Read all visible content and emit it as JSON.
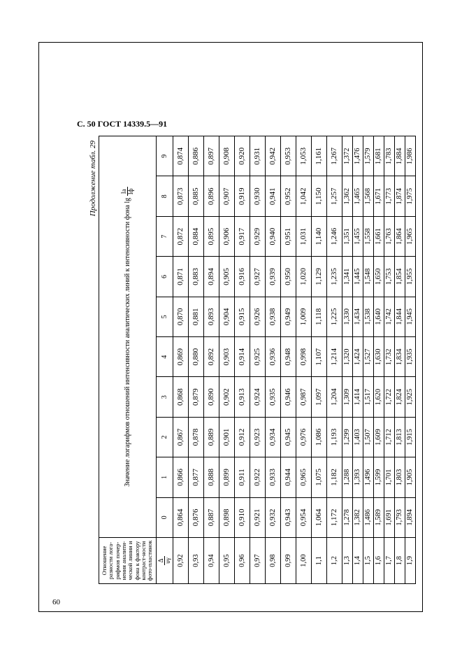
{
  "page": {
    "header": "С. 50 ГОСТ 14339.5—91",
    "footer_number": "60",
    "caption": "Продолжение табл. 29"
  },
  "table": {
    "row_header_top": "Отношение разности лога-рифмов почер-нения аналити-ческой линии и фона к фактору контраст-ности фото-пластинок",
    "row_header_frac_num": "Δ",
    "row_header_frac_den": "υγ",
    "group_header_prefix": "Значение логарифмов отношений интенсивности аналитических линий к интенсивности фона lg",
    "group_frac_num": "Iа",
    "group_frac_den": "Iф",
    "col_labels": [
      "0",
      "1",
      "2",
      "3",
      "4",
      "5",
      "6",
      "7",
      "8",
      "9"
    ],
    "rows": [
      {
        "h": "0,92",
        "c": [
          "0,864",
          "0,866",
          "0,867",
          "0,868",
          "0,869",
          "0,870",
          "0,871",
          "0,872",
          "0,873",
          "0,874"
        ],
        "tight": false
      },
      {
        "h": "0,93",
        "c": [
          "0,876",
          "0,877",
          "0,878",
          "0,879",
          "0,880",
          "0,881",
          "0,883",
          "0,884",
          "0,885",
          "0,886"
        ],
        "tight": false
      },
      {
        "h": "0,94",
        "c": [
          "0,887",
          "0,888",
          "0,889",
          "0,890",
          "0,892",
          "0,893",
          "0,894",
          "0,895",
          "0,896",
          "0,897"
        ],
        "tight": false
      },
      {
        "h": "0,95",
        "c": [
          "0,898",
          "0,899",
          "0,901",
          "0,902",
          "0,903",
          "0,904",
          "0,905",
          "0,906",
          "0,907",
          "0,908"
        ],
        "tight": false
      },
      {
        "h": "0,96",
        "c": [
          "0,910",
          "0,911",
          "0,912",
          "0,913",
          "0,914",
          "0,915",
          "0,916",
          "0,917",
          "0,919",
          "0,920"
        ],
        "tight": false
      },
      {
        "h": "0,97",
        "c": [
          "0,921",
          "0,922",
          "0,923",
          "0,924",
          "0,925",
          "0,926",
          "0,927",
          "0,929",
          "0,930",
          "0,931"
        ],
        "tight": false
      },
      {
        "h": "0,98",
        "c": [
          "0,932",
          "0,933",
          "0,934",
          "0,935",
          "0,936",
          "0,938",
          "0,939",
          "0,940",
          "0,941",
          "0,942"
        ],
        "tight": false
      },
      {
        "h": "0,99",
        "c": [
          "0,943",
          "0,944",
          "0,945",
          "0,946",
          "0,948",
          "0,949",
          "0,950",
          "0,951",
          "0,952",
          "0,953"
        ],
        "tight": false
      },
      {
        "h": "1,00",
        "c": [
          "0,954",
          "0,965",
          "0,976",
          "0,987",
          "0,998",
          "1,009",
          "1,020",
          "1,031",
          "1,042",
          "1,053"
        ],
        "tight": false
      },
      {
        "h": "1,1",
        "c": [
          "1,064",
          "1,075",
          "1,086",
          "1,097",
          "1,107",
          "1,118",
          "1,129",
          "1,140",
          "1,150",
          "1,161"
        ],
        "tight": false
      },
      {
        "h": "1,2",
        "c": [
          "1,172",
          "1,182",
          "1,193",
          "1,204",
          "1,214",
          "1,225",
          "1,235",
          "1,246",
          "1,257",
          "1,267"
        ],
        "tight": false
      },
      {
        "h": "1,3",
        "c": [
          "1,278",
          "1,288",
          "1,299",
          "1,309",
          "1,320",
          "1,330",
          "1,341",
          "1,351",
          "1,362",
          "1,372"
        ],
        "tight": true
      },
      {
        "h": "1,4",
        "c": [
          "1,382",
          "1,393",
          "1,403",
          "1,414",
          "1,424",
          "1,434",
          "1,445",
          "1,455",
          "1,465",
          "1,476"
        ],
        "tight": true
      },
      {
        "h": "1,5",
        "c": [
          "1,486",
          "1,496",
          "1,507",
          "1,517",
          "1,527",
          "1,538",
          "1,548",
          "1,558",
          "1,568",
          "1,579"
        ],
        "tight": true
      },
      {
        "h": "1,6",
        "c": [
          "1,589",
          "1,599",
          "1,609",
          "1,620",
          "1,630",
          "1,640",
          "1,650",
          "1,661",
          "1,671",
          "1,681"
        ],
        "tight": true
      },
      {
        "h": "1,7",
        "c": [
          "1,691",
          "1,701",
          "1,712",
          "1,722",
          "1,732",
          "1,742",
          "1,753",
          "1,763",
          "1,773",
          "1,783"
        ],
        "tight": true
      },
      {
        "h": "1,8",
        "c": [
          "1,793",
          "1,803",
          "1,813",
          "1,824",
          "1,834",
          "1,844",
          "1,854",
          "1,864",
          "1,874",
          "1,884"
        ],
        "tight": true
      },
      {
        "h": "1,9",
        "c": [
          "1,894",
          "1,905",
          "1,915",
          "1,925",
          "1,935",
          "1,945",
          "1,955",
          "1,965",
          "1,975",
          "1,986"
        ],
        "tight": true
      }
    ]
  }
}
